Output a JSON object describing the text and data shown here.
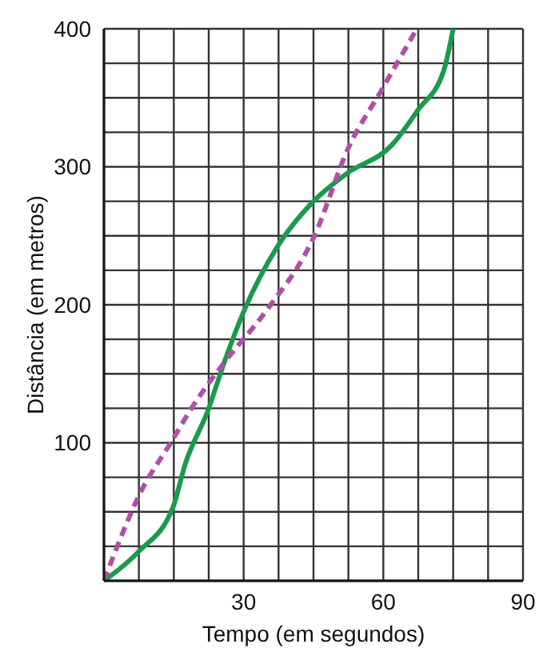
{
  "chart_data": {
    "type": "line",
    "xlabel": "Tempo (em segundos)",
    "ylabel": "Distância (em metros)",
    "xlim": [
      0,
      90
    ],
    "ylim": [
      0,
      400
    ],
    "xticks": [
      {
        "value": 0,
        "label": null
      },
      {
        "value": 7.5,
        "label": null
      },
      {
        "value": 15,
        "label": null
      },
      {
        "value": 22.5,
        "label": null
      },
      30,
      {
        "value": 37.5,
        "label": null
      },
      {
        "value": 45,
        "label": null
      },
      {
        "value": 52.5,
        "label": null
      },
      60,
      {
        "value": 67.5,
        "label": null
      },
      {
        "value": 75,
        "label": null
      },
      {
        "value": 82.5,
        "label": null
      },
      90
    ],
    "yticks": [
      {
        "value": 0,
        "label": null
      },
      {
        "value": 25,
        "label": null
      },
      {
        "value": 50,
        "label": null
      },
      {
        "value": 75,
        "label": null
      },
      100,
      {
        "value": 125,
        "label": null
      },
      {
        "value": 150,
        "label": null
      },
      {
        "value": 175,
        "label": null
      },
      200,
      {
        "value": 225,
        "label": null
      },
      {
        "value": 250,
        "label": null
      },
      {
        "value": 275,
        "label": null
      },
      300,
      {
        "value": 325,
        "label": null
      },
      {
        "value": 350,
        "label": null
      },
      {
        "value": 375,
        "label": null
      },
      400
    ],
    "grid": true,
    "series": [
      {
        "color": "#1a9a4a",
        "line_style": "solid",
        "x": [
          0,
          7.4,
          14.9,
          17.4,
          22.4,
          25.8,
          30,
          37.4,
          44.7,
          52.1,
          61.9,
          67.4,
          73,
          75
        ],
        "values": [
          0,
          21,
          54,
          84,
          124,
          158,
          195,
          243,
          274,
          295,
          316,
          341,
          370,
          400
        ]
      },
      {
        "color": "#b04fa8",
        "line_style": "dashed",
        "x": [
          0,
          2.4,
          7.4,
          14.7,
          18.6,
          25.8,
          34.7,
          45.2,
          52.4,
          59.7,
          67.2
        ],
        "values": [
          0,
          21,
          61,
          102,
          124,
          158,
          195,
          250,
          313,
          356,
          400
        ]
      }
    ]
  }
}
